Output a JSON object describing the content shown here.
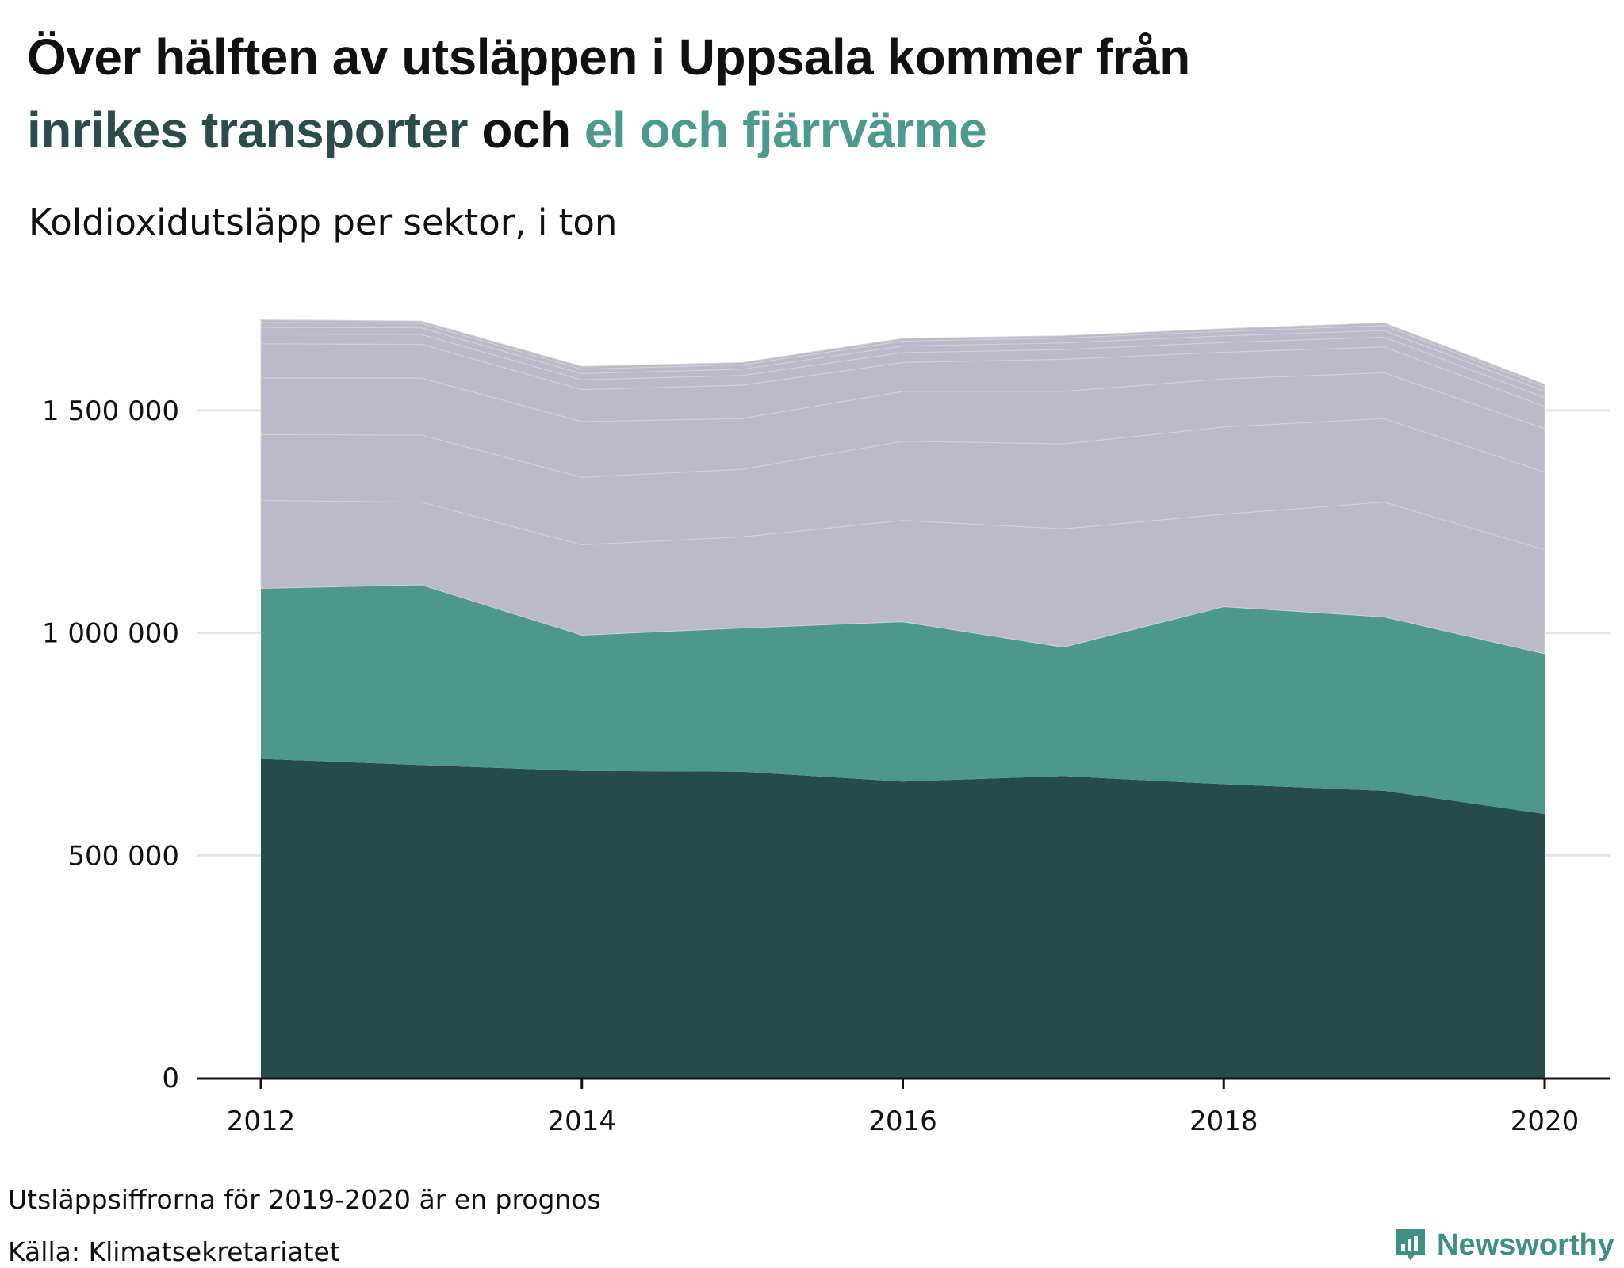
{
  "header": {
    "title_line1": "Över hälften av utsläppen i Uppsala kommer från",
    "title_hl1": "inrikes transporter",
    "title_mid": " och ",
    "title_hl2": "el och fjärrvärme",
    "subtitle": "Koldioxidutsläpp per sektor, i ton"
  },
  "footer": {
    "note": "Utsläppsiffrorna för 2019-2020 är en prognos",
    "source": "Källa: Klimatsekretariatet",
    "brand": "Newsworthy"
  },
  "colors": {
    "transport": "#274b4b",
    "el_fjarrvarme": "#4c988b",
    "other": "#bcbac8",
    "grid": "#e4e4e8",
    "axis": "#111111",
    "brand": "#3f8f84"
  },
  "chart_data": {
    "type": "area",
    "stacked": true,
    "x": [
      2012,
      2013,
      2014,
      2015,
      2016,
      2017,
      2018,
      2019,
      2020
    ],
    "xticks": [
      "2012",
      "2014",
      "2016",
      "2018",
      "2020"
    ],
    "xlim": [
      2011.8,
      2020.2
    ],
    "ylim": [
      0,
      1750000
    ],
    "yticks": [
      0,
      500000,
      1000000,
      1500000
    ],
    "ytick_labels": [
      "0",
      "500 000",
      "1 000 000",
      "1 500 000"
    ],
    "grid": true,
    "legend": "none",
    "series": [
      {
        "values": [
          717000,
          703000,
          690000,
          688000,
          666000,
          678000,
          660000,
          645000,
          593000
        ]
      },
      {
        "values": [
          383000,
          405000,
          305000,
          323000,
          359000,
          290000,
          399000,
          391000,
          360000
        ]
      },
      {
        "values": [
          198000,
          186000,
          203000,
          205000,
          228000,
          266000,
          208000,
          258000,
          234000
        ]
      },
      {
        "values": [
          148000,
          151000,
          152000,
          152000,
          178000,
          191000,
          196000,
          188000,
          175000
        ]
      },
      {
        "values": [
          127000,
          128000,
          125000,
          114000,
          112000,
          118000,
          108000,
          103000,
          97000
        ]
      },
      {
        "values": [
          77000,
          76000,
          72000,
          75000,
          65000,
          72000,
          60000,
          58000,
          50000
        ]
      },
      {
        "values": [
          22000,
          22000,
          22000,
          22000,
          22000,
          22000,
          22000,
          22000,
          20000
        ]
      },
      {
        "values": [
          15000,
          15000,
          14000,
          14000,
          15000,
          15000,
          15000,
          15000,
          14000
        ]
      },
      {
        "values": [
          11000,
          10000,
          10000,
          10000,
          11000,
          11000,
          10000,
          11000,
          10000
        ]
      },
      {
        "values": [
          6000,
          5000,
          6000,
          5000,
          6000,
          5000,
          6000,
          6000,
          6000
        ]
      }
    ]
  }
}
